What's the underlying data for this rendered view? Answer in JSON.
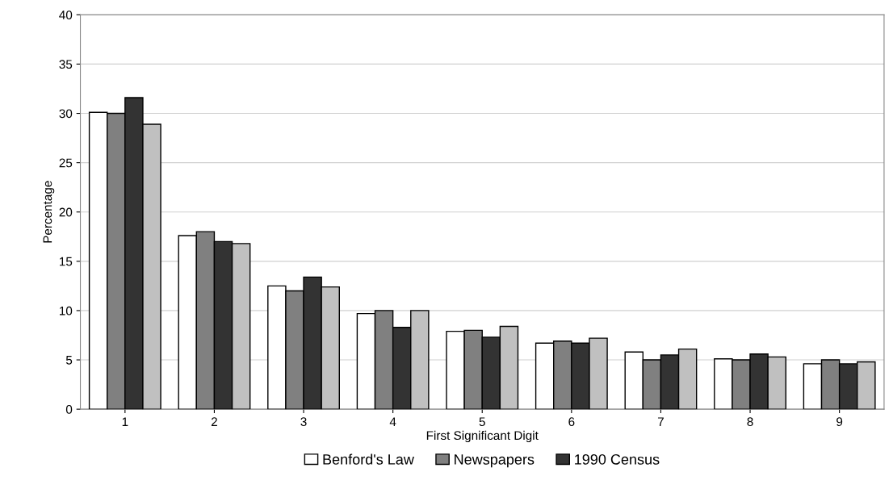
{
  "chart_data": {
    "type": "bar",
    "xlabel": "First Significant Digit",
    "ylabel": "Percentage",
    "categories": [
      "1",
      "2",
      "3",
      "4",
      "5",
      "6",
      "7",
      "8",
      "9"
    ],
    "series": [
      {
        "name": "Benford's Law",
        "color": "#ffffff",
        "values": [
          30.1,
          17.6,
          12.5,
          9.7,
          7.9,
          6.7,
          5.8,
          5.1,
          4.6
        ]
      },
      {
        "name": "Newspapers",
        "color": "#808080",
        "values": [
          30.0,
          18.0,
          12.0,
          10.0,
          8.0,
          6.9,
          5.0,
          5.0,
          5.0
        ]
      },
      {
        "name": "1990 Census",
        "color": "#333333",
        "values": [
          31.6,
          17.0,
          13.4,
          8.3,
          7.3,
          6.7,
          5.5,
          5.6,
          4.6
        ]
      },
      {
        "color": "#c0c0c0",
        "values": [
          28.9,
          16.8,
          12.4,
          10.0,
          8.4,
          7.2,
          6.1,
          5.3,
          4.8
        ]
      }
    ],
    "ylim": [
      0,
      40
    ],
    "yticks": [
      0,
      5,
      10,
      15,
      20,
      25,
      30,
      35,
      40
    ],
    "grid": "y",
    "legend": "bottom"
  }
}
